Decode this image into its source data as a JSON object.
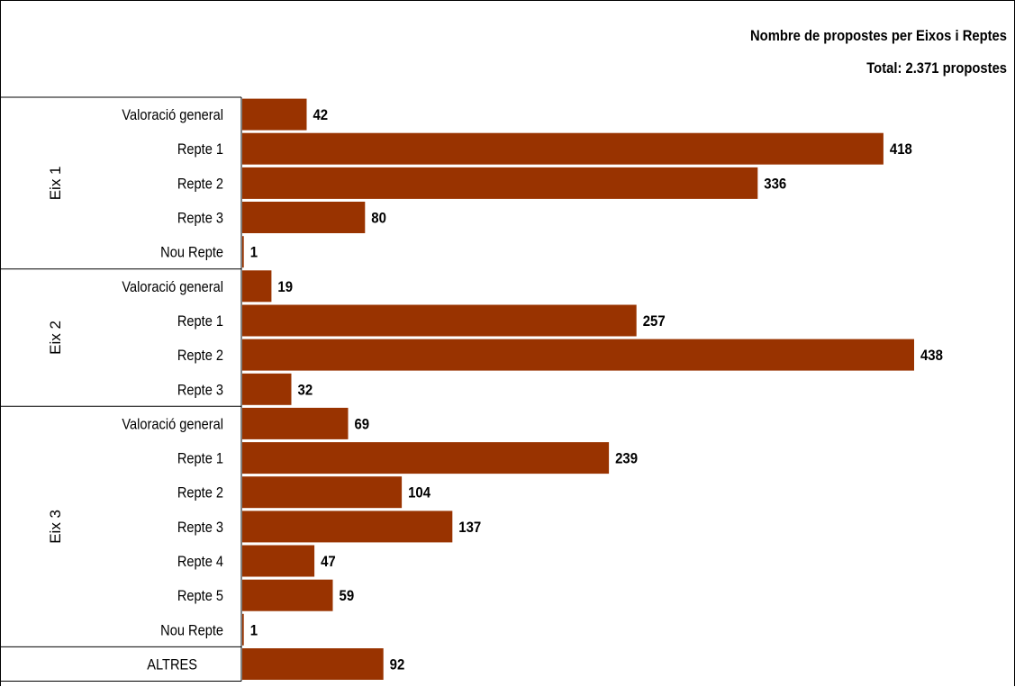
{
  "chart_data": {
    "type": "bar",
    "orientation": "horizontal",
    "title": "Nombre de propostes per Eixos i Reptes",
    "subtitle": "Total: 2.371 propostes",
    "bar_color": "#993300",
    "grid": false,
    "legend": "none",
    "xlim": [
      0,
      460
    ],
    "groups": [
      {
        "name": "Eix 1",
        "categories": [
          "Valoració general",
          "Repte 1",
          "Repte 2",
          "Repte 3",
          "Nou Repte"
        ],
        "values": [
          42,
          418,
          336,
          80,
          1
        ]
      },
      {
        "name": "Eix 2",
        "categories": [
          "Valoració general",
          "Repte 1",
          "Repte 2",
          "Repte 3"
        ],
        "values": [
          19,
          257,
          438,
          32
        ]
      },
      {
        "name": "Eix 3",
        "categories": [
          "Valoració general",
          "Repte 1",
          "Repte 2",
          "Repte 3",
          "Repte 4",
          "Repte 5",
          "Nou Repte"
        ],
        "values": [
          69,
          239,
          104,
          137,
          47,
          59,
          1
        ]
      },
      {
        "name": "",
        "categories": [
          "ALTRES"
        ],
        "values": [
          92
        ]
      }
    ]
  }
}
